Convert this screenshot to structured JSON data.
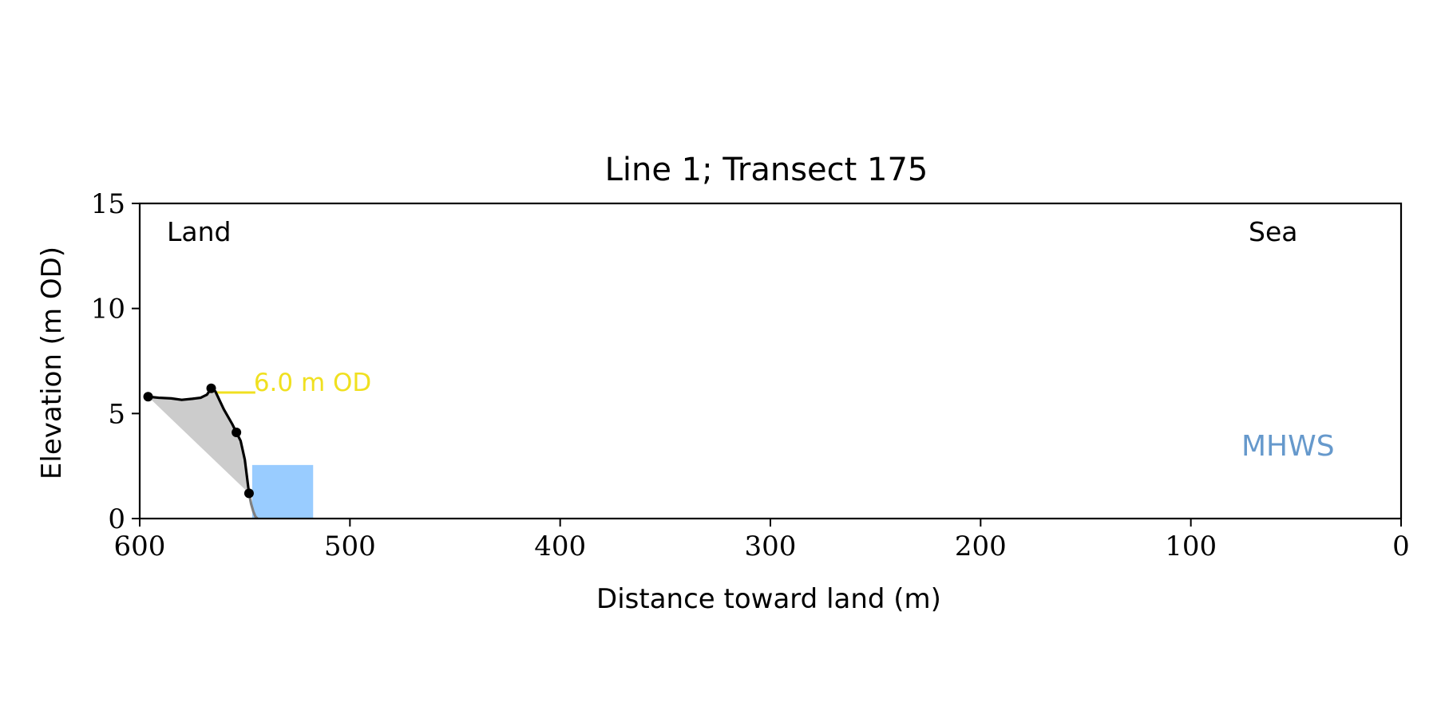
{
  "chart_data": {
    "type": "line",
    "title": "Line 1; Transect 175",
    "xlabel": "Distance toward land (m)",
    "ylabel": "Elevation (m OD)",
    "xlim": [
      600,
      0
    ],
    "ylim": [
      0,
      15
    ],
    "x_ticks": [
      600,
      500,
      400,
      300,
      200,
      100,
      0
    ],
    "x_tick_labels": [
      "600",
      "500",
      "400",
      "300",
      "200",
      "100",
      "0"
    ],
    "y_ticks": [
      0,
      5,
      10,
      15
    ],
    "y_tick_labels": [
      "0",
      "5",
      "10",
      "15"
    ],
    "grid": false,
    "corner_labels": {
      "left": "Land",
      "right": "Sea"
    },
    "annotation": {
      "text": "6.0 m OD",
      "elevation": 6.0,
      "x_start": 564,
      "x_end": 545,
      "color": "#f0e020"
    },
    "mhws": {
      "label": "MHWS",
      "color": "#6699cc",
      "box_x": [
        546.5,
        517.5
      ],
      "box_y": [
        0,
        2.55
      ],
      "box_color": "#99ccff"
    },
    "profile": {
      "color": "#000000",
      "x": [
        596,
        591,
        585,
        580,
        575,
        571,
        568,
        566,
        564,
        560,
        556,
        554,
        552,
        550,
        549,
        548
      ],
      "y": [
        5.8,
        5.75,
        5.72,
        5.65,
        5.7,
        5.75,
        5.9,
        6.2,
        6.05,
        5.2,
        4.5,
        4.1,
        3.7,
        2.8,
        2.0,
        1.2
      ]
    },
    "profile_toe": {
      "color": "#808080",
      "x": [
        548,
        547,
        546,
        545,
        544
      ],
      "y": [
        1.2,
        0.7,
        0.35,
        0.1,
        0.0
      ]
    },
    "key_points": {
      "x": [
        596,
        566,
        554,
        548
      ],
      "y": [
        5.8,
        6.2,
        4.1,
        1.2
      ]
    },
    "shaded_area_color": "#cccccc"
  }
}
